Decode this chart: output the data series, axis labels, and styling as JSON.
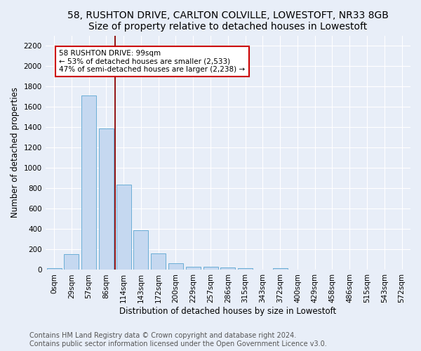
{
  "title1": "58, RUSHTON DRIVE, CARLTON COLVILLE, LOWESTOFT, NR33 8GB",
  "title2": "Size of property relative to detached houses in Lowestoft",
  "xlabel": "Distribution of detached houses by size in Lowestoft",
  "ylabel": "Number of detached properties",
  "footer1": "Contains HM Land Registry data © Crown copyright and database right 2024.",
  "footer2": "Contains public sector information licensed under the Open Government Licence v3.0.",
  "bar_labels": [
    "0sqm",
    "29sqm",
    "57sqm",
    "86sqm",
    "114sqm",
    "143sqm",
    "172sqm",
    "200sqm",
    "229sqm",
    "257sqm",
    "286sqm",
    "315sqm",
    "343sqm",
    "372sqm",
    "400sqm",
    "429sqm",
    "458sqm",
    "486sqm",
    "515sqm",
    "543sqm",
    "572sqm"
  ],
  "bar_heights": [
    20,
    155,
    1710,
    1390,
    835,
    390,
    165,
    68,
    32,
    28,
    27,
    15,
    0,
    18,
    0,
    0,
    0,
    0,
    0,
    0,
    0
  ],
  "bar_color": "#c5d8f0",
  "bar_edge_color": "#6baed6",
  "vline_x_idx": 3,
  "vline_color": "#8b0000",
  "annotation_text": "58 RUSHTON DRIVE: 99sqm\n← 53% of detached houses are smaller (2,533)\n47% of semi-detached houses are larger (2,238) →",
  "annotation_box_color": "#ffffff",
  "annotation_box_edge": "#cc0000",
  "ylim": [
    0,
    2300
  ],
  "yticks": [
    0,
    200,
    400,
    600,
    800,
    1000,
    1200,
    1400,
    1600,
    1800,
    2000,
    2200
  ],
  "bg_color": "#e8eef8",
  "plot_bg_color": "#e8eef8",
  "grid_color": "#ffffff",
  "title1_fontsize": 10,
  "title2_fontsize": 9,
  "xlabel_fontsize": 8.5,
  "ylabel_fontsize": 8.5,
  "tick_fontsize": 7.5,
  "footer_fontsize": 7
}
